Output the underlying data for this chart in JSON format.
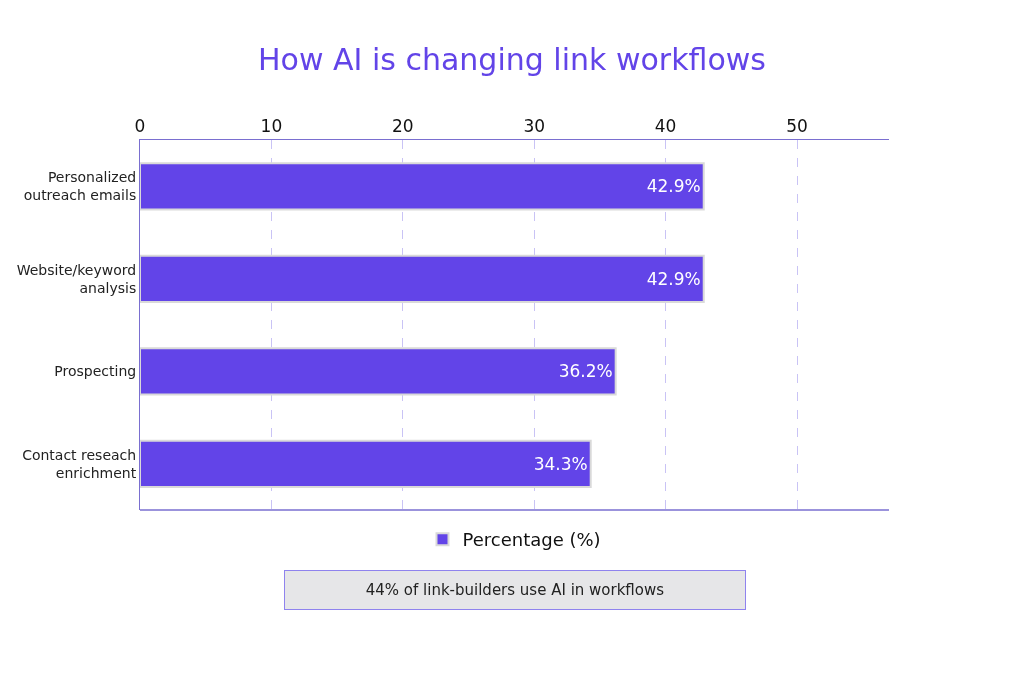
{
  "chart_data": {
    "type": "bar",
    "orientation": "horizontal",
    "title": "How AI is changing link workflows",
    "categories": [
      "Personalized outreach emails",
      "Website/keyword analysis",
      "Prospecting",
      "Contact reseach enrichment"
    ],
    "series": [
      {
        "name": "Percentage (%)",
        "color": "#6244e8",
        "values": [
          42.9,
          42.9,
          36.2,
          34.3
        ]
      }
    ],
    "value_labels": [
      "42.9%",
      "42.9%",
      "36.2%",
      "34.3%"
    ],
    "xlim": [
      0,
      57
    ],
    "xticks": [
      0,
      10,
      20,
      30,
      40,
      50
    ],
    "grid": true,
    "legend": "bottom",
    "annotations": [
      "44% of link-builders use AI in workflows"
    ]
  }
}
